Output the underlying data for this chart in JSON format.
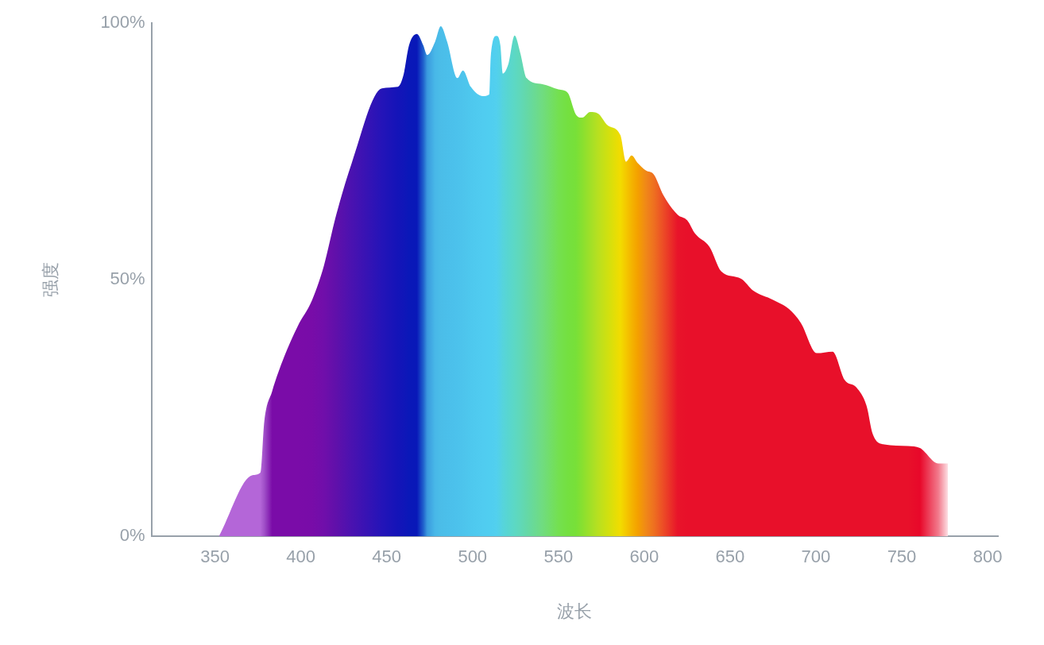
{
  "chart_data": {
    "type": "area",
    "xlabel": "波长",
    "ylabel": "强度",
    "xlim": [
      313,
      806
    ],
    "xticks": [
      350,
      400,
      450,
      500,
      550,
      600,
      650,
      700,
      750,
      800
    ],
    "ylim": [
      0,
      100
    ],
    "yticks": [
      {
        "value": 0,
        "label": "0%"
      },
      {
        "value": 50,
        "label": "50%"
      },
      {
        "value": 100,
        "label": "100%"
      }
    ],
    "grid": false,
    "legend": false,
    "marker": "none",
    "series": [
      {
        "x": [
          352.3,
          371.8,
          376.4,
          378.7,
          383.3,
          390.3,
          398.1,
          406.5,
          413.4,
          420.4,
          429.6,
          447.2,
          456.5,
          459.7,
          463,
          467.6,
          471.3,
          473.6,
          478.2,
          481.5,
          485.2,
          491.2,
          494.4,
          499,
          506,
          509.7,
          510.6,
          513.9,
          516.2,
          517.6,
          520.8,
          524.5,
          527.8,
          531.5,
          540.7,
          550,
          555.5,
          560.2,
          563.9,
          568.5,
          573.1,
          578.7,
          586.1,
          589.4,
          592.6,
          596.3,
          600.9,
          605.6,
          611.1,
          619.4,
          625,
          629.6,
          638,
          644.9,
          656.5,
          663.4,
          675,
          684.3,
          691.2,
          700.5,
          709.7,
          716.7,
          723.6,
          729.6,
          732.9,
          739.8,
          753.7,
          760.6,
          771.3,
          776.9
        ],
        "values": [
          0,
          11.9,
          12.4,
          22.4,
          28.3,
          35,
          40.9,
          46,
          52.7,
          62.4,
          72.7,
          87.3,
          87.6,
          89.8,
          95.7,
          97.9,
          95.7,
          93.8,
          96.4,
          99.4,
          96.4,
          89.3,
          90.8,
          87.6,
          85.8,
          86.1,
          93.5,
          97.5,
          95.7,
          90.2,
          92,
          97.6,
          94.2,
          89.3,
          88.1,
          87.1,
          86.4,
          82.2,
          81.6,
          82.7,
          82.4,
          80.1,
          78.2,
          73,
          74.2,
          72.7,
          71.3,
          70.5,
          66.5,
          62.7,
          61.6,
          59,
          56.4,
          51.6,
          50.2,
          47.9,
          46.1,
          44.3,
          41.6,
          35.7,
          36,
          30.5,
          29,
          25.3,
          20.1,
          17.9,
          17.6,
          17.2,
          14.2,
          14.2
        ],
        "colors": [
          "#b466d8",
          "#b466d8",
          "#b466d8",
          "#a050c8",
          "#7a0ca8",
          "#7a0ca8",
          "#7a0ca8",
          "#780ca8",
          "#700eaa",
          "#6010aa",
          "#4a12b0",
          "#2414b8",
          "#1414b8",
          "#1016b8",
          "#0a18b8",
          "#0818b8",
          "#2060cc",
          "#3a9ade",
          "#48b8e8",
          "#4bbde8",
          "#4bbfea",
          "#4cc2ec",
          "#4dc4ec",
          "#4ec8ee",
          "#50ccf0",
          "#50cef0",
          "#50cef0",
          "#52d0ee",
          "#54d2e4",
          "#56d4dc",
          "#58d6d0",
          "#5cd8c4",
          "#60d8b8",
          "#64d8a8",
          "#70dc80",
          "#74e050",
          "#74e040",
          "#78e038",
          "#88e030",
          "#a0e028",
          "#b8e020",
          "#d0e010",
          "#f2dc00",
          "#f4c800",
          "#f4b400",
          "#f4a000",
          "#f08818",
          "#ee7020",
          "#ec4c26",
          "#e8142a",
          "#e8102a",
          "#e8102a",
          "#e8102a",
          "#e8102a",
          "#e8102a",
          "#e8102a",
          "#e8102a",
          "#e8102a",
          "#e8102a",
          "#e8102a",
          "#e8102a",
          "#e8102a",
          "#e8102a",
          "#e8102a",
          "#e8102a",
          "#e8102a",
          "#e8102a",
          "#e8082a",
          "#f27a8c",
          "#fde0e4"
        ]
      }
    ]
  }
}
